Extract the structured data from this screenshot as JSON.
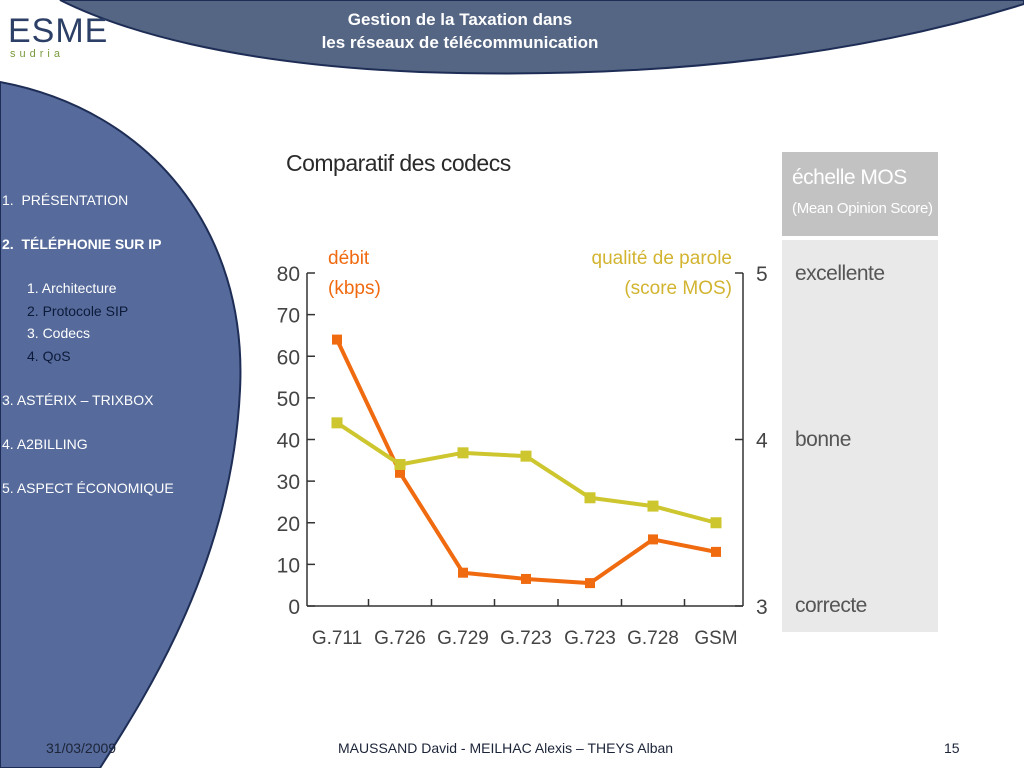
{
  "header": {
    "title_line1": "Gestion de la Taxation dans",
    "title_line2": "les réseaux de télécommunication"
  },
  "logo": {
    "main": "ESME",
    "sub": "sudria"
  },
  "nav": {
    "items": [
      {
        "num": "1.",
        "label": "PRÉSENTATION"
      },
      {
        "num": "2.",
        "label": "TÉLÉPHONIE SUR IP"
      },
      {
        "num": "3.",
        "label": "ASTÉRIX – TRIXBOX"
      },
      {
        "num": "4.",
        "label": "A2BILLING"
      },
      {
        "num": "5.",
        "label": "ASPECT ÉCONOMIQUE"
      }
    ],
    "subitems": [
      {
        "label": "1. Architecture"
      },
      {
        "label": "2. Protocole SIP"
      },
      {
        "label": "3. Codecs"
      },
      {
        "label": "4. QoS"
      }
    ]
  },
  "footer": {
    "date": "31/03/2009",
    "authors": "MAUSSAND David - MEILHAC Alexis – THEYS Alban",
    "page": "15"
  },
  "mos_scale": {
    "title": "échelle MOS",
    "subtitle": "(Mean Opinion Score)",
    "levels": [
      "excellente",
      "bonne",
      "correcte"
    ]
  },
  "colors": {
    "debit": "#f06a10",
    "quality": "#cdc62e",
    "sidebar": "#566b9b",
    "header_band": "#556684"
  },
  "chart_data": {
    "type": "line",
    "title": "Comparatif des codecs",
    "categories": [
      "G.711",
      "G.726",
      "G.729",
      "G.723",
      "G.723",
      "G.728",
      "GSM"
    ],
    "y_left": {
      "label_line1": "débit",
      "label_line2": "(kbps)",
      "range": [
        0,
        80
      ],
      "ticks": [
        0,
        10,
        20,
        30,
        40,
        50,
        60,
        70,
        80
      ]
    },
    "y_right": {
      "label_line1": "qualité de parole",
      "label_line2": "(score MOS)",
      "range": [
        3,
        5
      ],
      "ticks": [
        3,
        4,
        5
      ]
    },
    "series": [
      {
        "name": "débit (kbps)",
        "axis": "left",
        "values": [
          64,
          32,
          8,
          6.5,
          5.5,
          16,
          13
        ]
      },
      {
        "name": "qualité de parole (score MOS)",
        "axis": "right",
        "values": [
          4.1,
          3.85,
          3.92,
          3.9,
          3.65,
          3.6,
          3.5
        ]
      }
    ]
  }
}
